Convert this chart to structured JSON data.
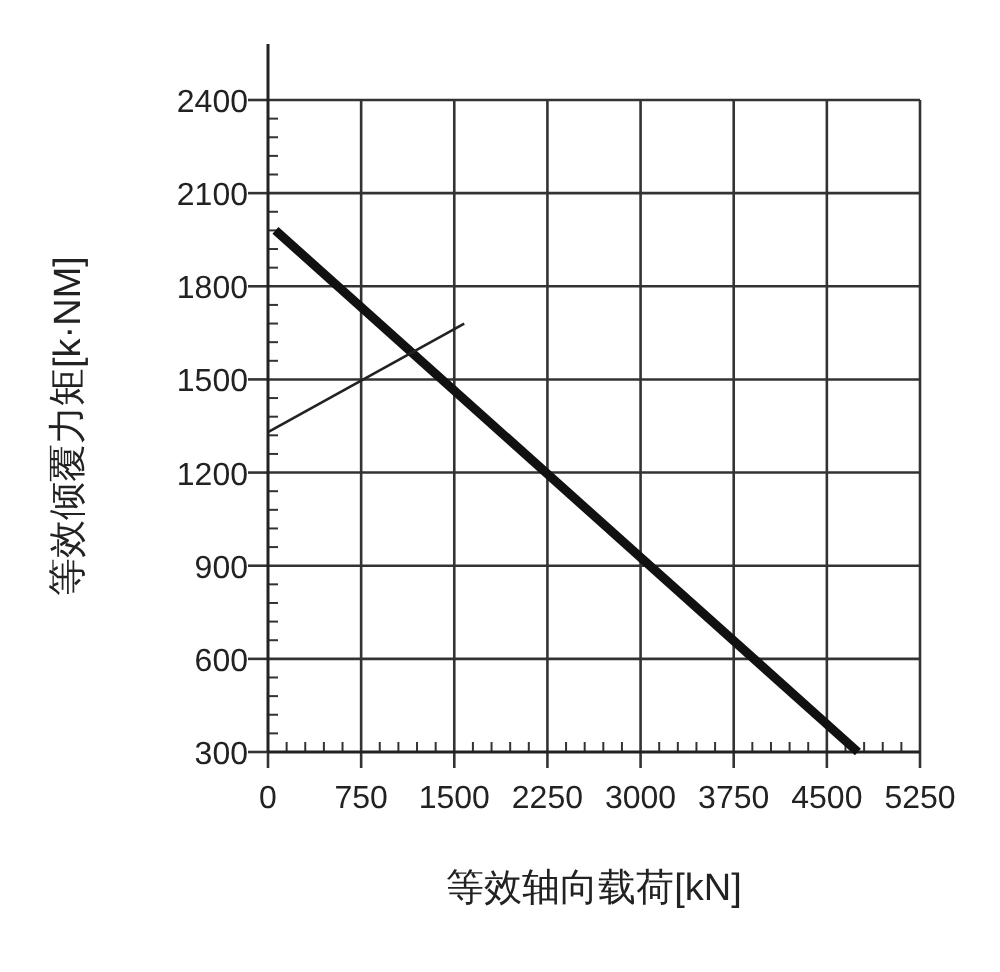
{
  "chart_data": {
    "type": "line",
    "xlabel": "等效轴向载荷[kN]",
    "ylabel": "等效倾覆力矩[k·NM]",
    "xlim": [
      0,
      5250
    ],
    "ylim": [
      300,
      2400
    ],
    "xticks": [
      0,
      {
        "value": 150,
        "label": null
      },
      {
        "value": 300,
        "label": null
      },
      {
        "value": 450,
        "label": null
      },
      {
        "value": 600,
        "label": null
      },
      750,
      {
        "value": 900,
        "label": null
      },
      {
        "value": 1050,
        "label": null
      },
      {
        "value": 1200,
        "label": null
      },
      {
        "value": 1350,
        "label": null
      },
      1500,
      {
        "value": 1650,
        "label": null
      },
      {
        "value": 1800,
        "label": null
      },
      {
        "value": 1950,
        "label": null
      },
      {
        "value": 2100,
        "label": null
      },
      2250,
      {
        "value": 2400,
        "label": null
      },
      {
        "value": 2550,
        "label": null
      },
      {
        "value": 2700,
        "label": null
      },
      {
        "value": 2850,
        "label": null
      },
      3000,
      {
        "value": 3150,
        "label": null
      },
      {
        "value": 3300,
        "label": null
      },
      {
        "value": 3450,
        "label": null
      },
      {
        "value": 3600,
        "label": null
      },
      3750,
      {
        "value": 3900,
        "label": null
      },
      {
        "value": 4050,
        "label": null
      },
      {
        "value": 4200,
        "label": null
      },
      {
        "value": 4350,
        "label": null
      },
      4500,
      {
        "value": 4650,
        "label": null
      },
      {
        "value": 4800,
        "label": null
      },
      {
        "value": 4950,
        "label": null
      },
      {
        "value": 5100,
        "label": null
      },
      5250
    ],
    "yticks": [
      300,
      {
        "value": 360,
        "label": null
      },
      {
        "value": 420,
        "label": null
      },
      {
        "value": 480,
        "label": null
      },
      {
        "value": 540,
        "label": null
      },
      600,
      {
        "value": 660,
        "label": null
      },
      {
        "value": 720,
        "label": null
      },
      {
        "value": 780,
        "label": null
      },
      {
        "value": 840,
        "label": null
      },
      900,
      {
        "value": 960,
        "label": null
      },
      {
        "value": 1020,
        "label": null
      },
      {
        "value": 1080,
        "label": null
      },
      {
        "value": 1140,
        "label": null
      },
      1200,
      {
        "value": 1260,
        "label": null
      },
      {
        "value": 1320,
        "label": null
      },
      {
        "value": 1380,
        "label": null
      },
      {
        "value": 1440,
        "label": null
      },
      1500,
      {
        "value": 1560,
        "label": null
      },
      {
        "value": 1620,
        "label": null
      },
      {
        "value": 1680,
        "label": null
      },
      {
        "value": 1740,
        "label": null
      },
      1800,
      {
        "value": 1860,
        "label": null
      },
      {
        "value": 1920,
        "label": null
      },
      {
        "value": 1980,
        "label": null
      },
      {
        "value": 2040,
        "label": null
      },
      2100,
      {
        "value": 2160,
        "label": null
      },
      {
        "value": 2220,
        "label": null
      },
      {
        "value": 2280,
        "label": null
      },
      {
        "value": 2340,
        "label": null
      },
      2400
    ],
    "grid": true,
    "marker": "none",
    "line_style": "solid",
    "series": [
      {
        "color": "#111111",
        "x": [
          60,
          4750
        ],
        "values": [
          1980,
          300
        ]
      },
      {
        "color": "#222222",
        "x": [
          0,
          1580
        ],
        "values": [
          1330,
          1680
        ]
      }
    ]
  }
}
